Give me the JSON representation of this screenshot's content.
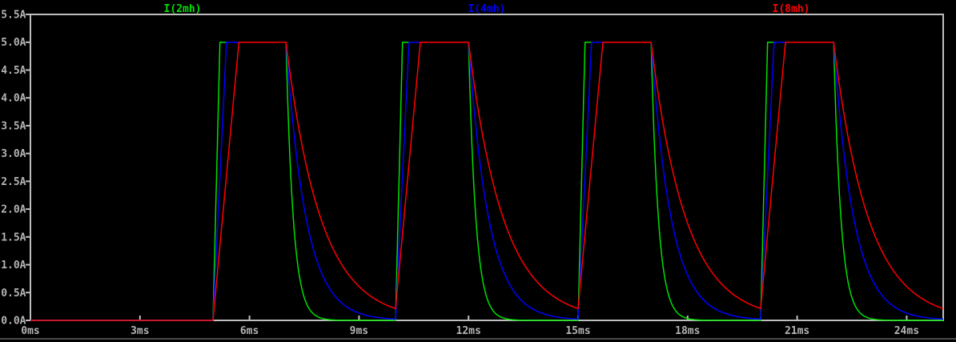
{
  "window": {
    "background": "#000000",
    "border_color": "#bebebe",
    "label_color": "#b4b4b4",
    "bottom_edge_color": "#4a4a4a"
  },
  "legend": {
    "position": "top",
    "items": [
      {
        "label": "I(2mh)",
        "color": "#00e000"
      },
      {
        "label": "I(4mh)",
        "color": "#0000ff"
      },
      {
        "label": "I(8mh)",
        "color": "#ff0000"
      }
    ]
  },
  "chart_data": {
    "type": "line",
    "title": "",
    "xlabel": "",
    "ylabel": "",
    "grid": false,
    "legend_position": "top",
    "x_axis": {
      "unit": "ms",
      "min": 0,
      "max": 25,
      "tick_step": 3,
      "ticks": [
        0,
        3,
        6,
        9,
        12,
        15,
        18,
        21,
        24
      ],
      "tick_labels": [
        "0ms",
        "3ms",
        "6ms",
        "9ms",
        "12ms",
        "15ms",
        "18ms",
        "21ms",
        "24ms"
      ]
    },
    "y_axis": {
      "unit": "A",
      "min": 0,
      "max": 5.5,
      "tick_step": 0.5,
      "ticks": [
        5.5,
        5.0,
        4.5,
        4.0,
        3.5,
        3.0,
        2.5,
        2.0,
        1.5,
        1.0,
        0.5,
        0.0
      ],
      "tick_labels": [
        "5.5A",
        "5.0A",
        "4.5A",
        "4.0A",
        "3.5A",
        "3.0A",
        "2.5A",
        "2.0A",
        "1.5A",
        "1.0A",
        "0.5A",
        "0.0A"
      ]
    },
    "waveform": {
      "kind": "rl_inductor_current_pulse_train",
      "amplitude_a": 5.0,
      "initial_a": 0.0,
      "pulse_start_ms": 5.0,
      "pulse_period_ms": 5.0,
      "pulse_on_ms": 2.0,
      "num_pulses": 4,
      "description": "Current ramps linearly to 5A limit at pulse start, holds 5A during on-time, decays exponentially after turn-off; residual current remains at next pulse for larger inductances."
    },
    "series": [
      {
        "name": "I(2mh)",
        "inductance_mh": 2,
        "color": "#00e000",
        "rise_ms": 0.19,
        "decay_tau_ms": 0.2,
        "peak_a": 5.0,
        "residual_at_next_pulse_a": 0.0
      },
      {
        "name": "I(4mh)",
        "inductance_mh": 4,
        "color": "#0000ff",
        "rise_ms": 0.37,
        "decay_tau_ms": 0.55,
        "peak_a": 5.0,
        "residual_at_next_pulse_a": 0.02
      },
      {
        "name": "I(8mh)",
        "inductance_mh": 8,
        "color": "#ff0000",
        "rise_ms": 0.71,
        "decay_tau_ms": 0.95,
        "peak_a": 5.0,
        "residual_at_next_pulse_a": 0.21
      }
    ]
  }
}
